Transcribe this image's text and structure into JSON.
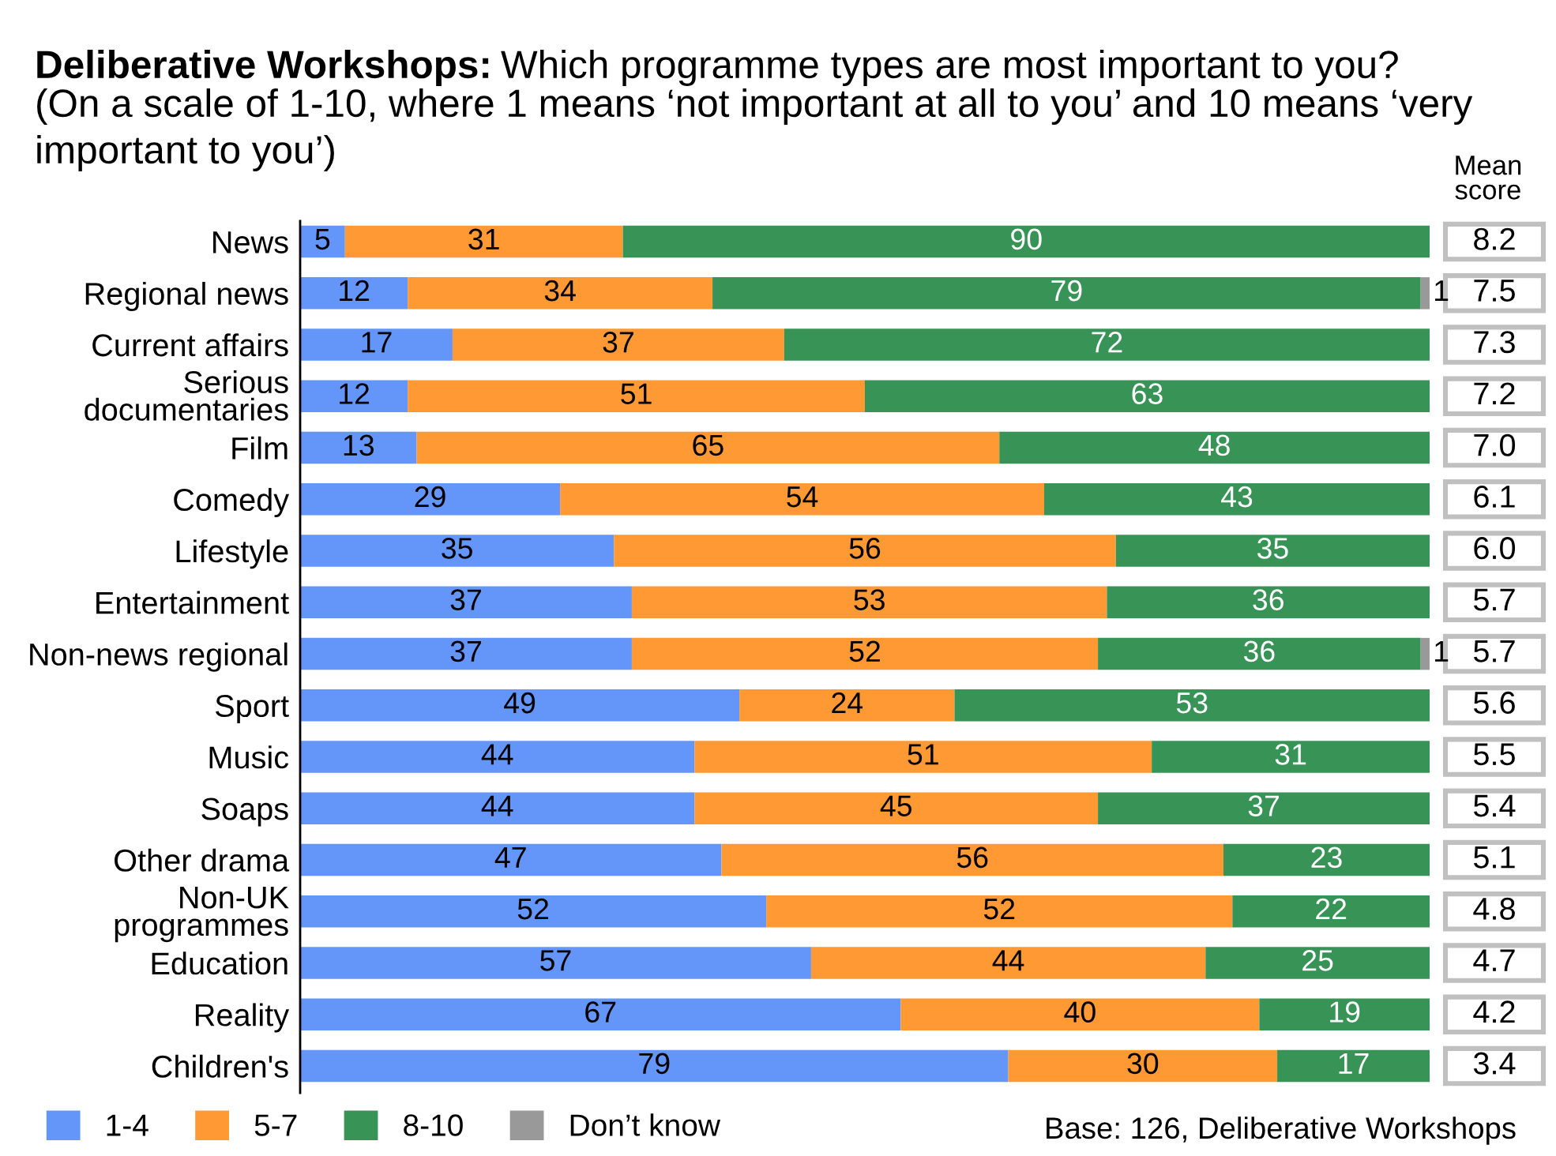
{
  "chart_data": {
    "type": "bar",
    "orientation": "horizontal",
    "stacked": true,
    "title": "Deliberative Workshops:",
    "subtitle": "Which programme types are most important to you?",
    "categories": [
      "News",
      "Regional news",
      "Current affairs",
      "Serious\ndocumentaries",
      "Film",
      "Comedy",
      "Lifestyle",
      "Entertainment",
      "Non-news regional",
      "Sport",
      "Music",
      "Soaps",
      "Other drama",
      "Non-UK\nprogrammes",
      "Education",
      "Reality",
      "Children's"
    ],
    "series": [
      {
        "name": "1-4",
        "color": "#6495f8",
        "values": [
          5,
          12,
          17,
          12,
          13,
          29,
          35,
          37,
          37,
          49,
          44,
          44,
          47,
          52,
          57,
          67,
          79
        ]
      },
      {
        "name": "5-7",
        "color": "#ff9933",
        "values": [
          31,
          34,
          37,
          51,
          65,
          54,
          56,
          53,
          52,
          24,
          51,
          45,
          56,
          52,
          44,
          40,
          30
        ]
      },
      {
        "name": "8-10",
        "color": "#389456",
        "values": [
          90,
          79,
          72,
          63,
          48,
          43,
          35,
          36,
          36,
          53,
          31,
          37,
          23,
          22,
          25,
          19,
          17
        ]
      },
      {
        "name": "Don’t know",
        "color": "#999999",
        "values": [
          null,
          1,
          null,
          null,
          null,
          null,
          null,
          null,
          1,
          null,
          null,
          null,
          null,
          null,
          null,
          null,
          null
        ]
      }
    ],
    "xlim": [
      0,
      126
    ],
    "tick_labels": "y",
    "data_labels": true,
    "legend": "bottom",
    "annotations": [
      "(On a scale of 1-10, where 1 means ‘not important at all to you’ and 10 means ‘very important to you’)",
      "Mean\nscore",
      "8.2",
      "7.5",
      "7.3",
      "7.2",
      "7.0",
      "6.1",
      "6.0",
      "5.7",
      "5.7",
      "5.6",
      "5.5",
      "5.4",
      "5.1",
      "4.8",
      "4.7",
      "4.2",
      "3.4",
      "Base: 126, Deliberative Workshops"
    ]
  }
}
